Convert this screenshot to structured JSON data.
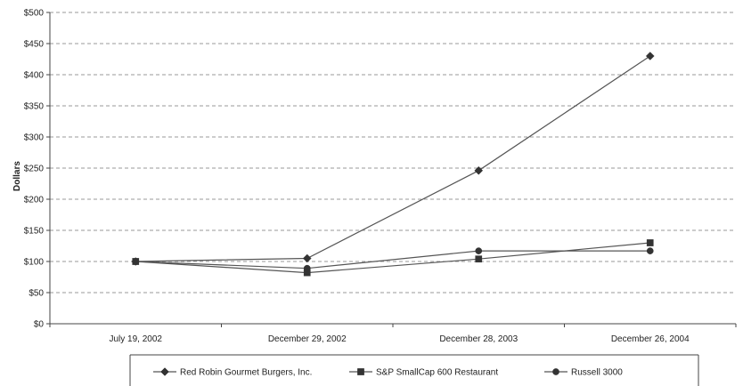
{
  "chart_data": {
    "type": "line",
    "title": "",
    "xlabel": "",
    "ylabel": "Dollars",
    "categories": [
      "July 19, 2002",
      "December 29, 2002",
      "December 28, 2003",
      "December 26, 2004"
    ],
    "y_ticks": [
      "$0",
      "$50",
      "$100",
      "$150",
      "$200",
      "$250",
      "$300",
      "$350",
      "$400",
      "$450",
      "$500"
    ],
    "ylim": [
      0,
      500
    ],
    "grid": "horizontal dashed",
    "legend_position": "bottom",
    "series": [
      {
        "name": "Red Robin Gourmet Burgers, Inc.",
        "marker": "diamond",
        "values": [
          100,
          105,
          246,
          430
        ]
      },
      {
        "name": "S&P SmallCap 600 Restaurant",
        "marker": "square",
        "values": [
          100,
          82,
          104,
          130
        ]
      },
      {
        "name": "Russell 3000",
        "marker": "circle",
        "values": [
          100,
          89,
          117,
          117
        ]
      }
    ],
    "colors": {
      "line": "#555555",
      "marker": "#333333",
      "grid": "#999999",
      "axis": "#444444"
    }
  }
}
